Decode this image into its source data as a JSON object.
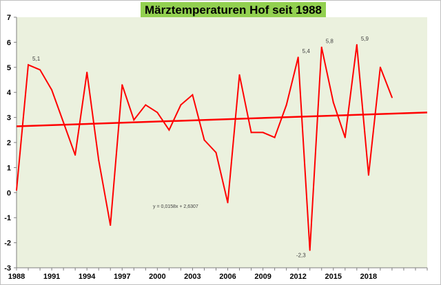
{
  "chart_data": {
    "type": "line",
    "title": "Märztemperaturen Hof seit 1988",
    "xlabel": "",
    "ylabel": "",
    "xlim": [
      1988,
      2023
    ],
    "ylim": [
      -3,
      7
    ],
    "xticks": [
      1988,
      1991,
      1994,
      1997,
      2000,
      2003,
      2006,
      2009,
      2012,
      2015,
      2018
    ],
    "yticks": [
      -3,
      -2,
      -1,
      0,
      1,
      2,
      3,
      4,
      5,
      6,
      7
    ],
    "grid": false,
    "legend": "none",
    "series": [
      {
        "x": [
          1988,
          1989,
          1990,
          1991,
          1992,
          1993,
          1994,
          1995,
          1996,
          1997,
          1998,
          1999,
          2000,
          2001,
          2002,
          2003,
          2004,
          2005,
          2006,
          2007,
          2008,
          2009,
          2010,
          2011,
          2012,
          2013,
          2014,
          2015,
          2016,
          2017,
          2018,
          2019,
          2020
        ],
        "values": [
          0.1,
          5.1,
          4.9,
          4.1,
          2.8,
          1.5,
          4.8,
          1.3,
          -1.3,
          4.3,
          2.9,
          3.5,
          3.2,
          2.5,
          3.5,
          3.9,
          2.1,
          1.6,
          -0.4,
          4.7,
          2.4,
          2.4,
          2.2,
          3.5,
          5.4,
          -2.3,
          5.8,
          3.6,
          2.2,
          5.9,
          0.7,
          5.0,
          3.8
        ],
        "color": "#ff0000"
      }
    ],
    "trendline": {
      "slope": 0.0158,
      "intercept": 2.6307,
      "equation": "y = 0,0158x + 2,6307",
      "color": "#ff0000",
      "x_end": 2023
    },
    "annotations": [
      {
        "x": 1989,
        "y": 5.1,
        "text": "5,1"
      },
      {
        "x": 2012,
        "y": 5.4,
        "text": "5,4"
      },
      {
        "x": 2014,
        "y": 5.8,
        "text": "5,8"
      },
      {
        "x": 2017,
        "y": 5.9,
        "text": "5,9"
      },
      {
        "x": 2013,
        "y": -2.3,
        "text": "-2,3"
      }
    ],
    "colors": {
      "plot_background": "#ebf1de",
      "title_background": "#92d050",
      "axis": "#7f7f7f"
    }
  }
}
